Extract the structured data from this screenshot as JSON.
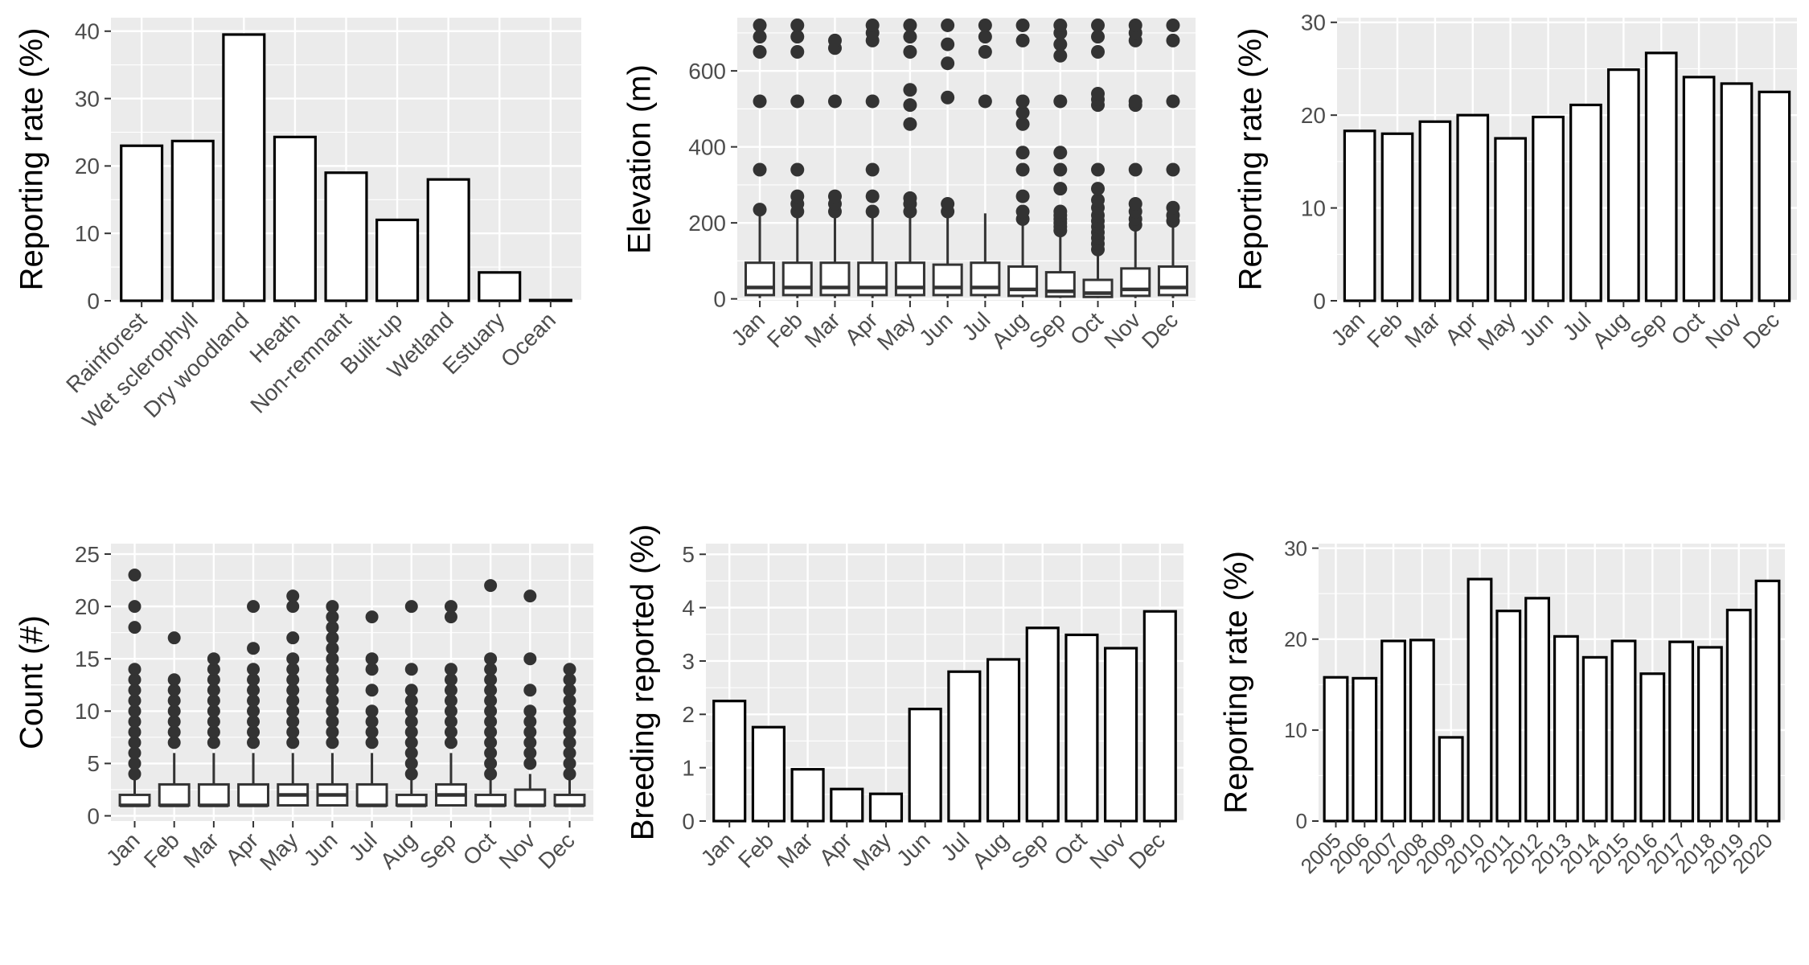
{
  "chart_data": [
    {
      "id": "habitat",
      "type": "bar",
      "ylabel": "Reporting rate (%)",
      "ylim": [
        0,
        42
      ],
      "yticks": [
        0,
        10,
        20,
        30,
        40
      ],
      "categories": [
        "Rainforest",
        "Wet sclerophyll",
        "Dry woodland",
        "Heath",
        "Non-remnant",
        "Built-up",
        "Wetland",
        "Estuary",
        "Ocean"
      ],
      "values": [
        23,
        23.7,
        39.5,
        24.3,
        19,
        12,
        18,
        4.2,
        0.1
      ],
      "grid": true,
      "xtick_rotation": 45
    },
    {
      "id": "elevation",
      "type": "box",
      "ylabel": "Elevation (m)",
      "ylim": [
        -5,
        740
      ],
      "yticks": [
        0,
        200,
        400,
        600
      ],
      "categories": [
        "Jan",
        "Feb",
        "Mar",
        "Apr",
        "May",
        "Jun",
        "Jul",
        "Aug",
        "Sep",
        "Oct",
        "Nov",
        "Dec"
      ],
      "boxes": [
        {
          "q1": 10,
          "median": 30,
          "q3": 95,
          "lo": 2,
          "hi": 225,
          "outliers": [
            235,
            340,
            520,
            650,
            690,
            720
          ]
        },
        {
          "q1": 10,
          "median": 30,
          "q3": 95,
          "lo": 2,
          "hi": 225,
          "outliers": [
            230,
            250,
            270,
            340,
            520,
            650,
            690,
            720
          ]
        },
        {
          "q1": 10,
          "median": 30,
          "q3": 95,
          "lo": 2,
          "hi": 220,
          "outliers": [
            230,
            250,
            270,
            520,
            660,
            680
          ]
        },
        {
          "q1": 10,
          "median": 30,
          "q3": 95,
          "lo": 2,
          "hi": 215,
          "outliers": [
            230,
            270,
            340,
            520,
            680,
            700,
            720
          ]
        },
        {
          "q1": 10,
          "median": 30,
          "q3": 95,
          "lo": 2,
          "hi": 220,
          "outliers": [
            230,
            250,
            265,
            460,
            510,
            550,
            650,
            690,
            720
          ]
        },
        {
          "q1": 10,
          "median": 30,
          "q3": 90,
          "lo": 2,
          "hi": 215,
          "outliers": [
            230,
            250,
            530,
            620,
            670,
            720
          ]
        },
        {
          "q1": 10,
          "median": 30,
          "q3": 95,
          "lo": 2,
          "hi": 225,
          "outliers": [
            520,
            650,
            690,
            720
          ]
        },
        {
          "q1": 8,
          "median": 25,
          "q3": 85,
          "lo": 2,
          "hi": 200,
          "outliers": [
            210,
            230,
            270,
            340,
            385,
            460,
            490,
            520,
            680,
            720
          ]
        },
        {
          "q1": 6,
          "median": 20,
          "q3": 70,
          "lo": 2,
          "hi": 170,
          "outliers": [
            180,
            190,
            200,
            210,
            220,
            230,
            290,
            340,
            385,
            520,
            640,
            670,
            700,
            720
          ]
        },
        {
          "q1": 5,
          "median": 15,
          "q3": 50,
          "lo": 2,
          "hi": 120,
          "outliers": [
            130,
            145,
            160,
            175,
            190,
            205,
            220,
            240,
            260,
            290,
            340,
            510,
            525,
            540,
            650,
            690,
            720
          ]
        },
        {
          "q1": 8,
          "median": 25,
          "q3": 80,
          "lo": 2,
          "hi": 180,
          "outliers": [
            195,
            210,
            230,
            250,
            340,
            510,
            520,
            680,
            700,
            720
          ]
        },
        {
          "q1": 10,
          "median": 30,
          "q3": 85,
          "lo": 2,
          "hi": 190,
          "outliers": [
            205,
            220,
            240,
            340,
            520,
            680,
            720
          ]
        }
      ]
    },
    {
      "id": "reporting-month",
      "type": "bar",
      "ylabel": "Reporting rate (%)",
      "ylim": [
        0,
        30.5
      ],
      "yticks": [
        0,
        10,
        20,
        30
      ],
      "categories": [
        "Jan",
        "Feb",
        "Mar",
        "Apr",
        "May",
        "Jun",
        "Jul",
        "Aug",
        "Sep",
        "Oct",
        "Nov",
        "Dec"
      ],
      "values": [
        18.3,
        18,
        19.3,
        20,
        17.5,
        19.8,
        21.1,
        24.9,
        26.7,
        24.1,
        23.4,
        22.5
      ],
      "grid": true
    },
    {
      "id": "count",
      "type": "box",
      "ylabel": "Count (#)",
      "ylim": [
        -0.5,
        26
      ],
      "yticks": [
        0,
        5,
        10,
        15,
        20,
        25
      ],
      "categories": [
        "Jan",
        "Feb",
        "Mar",
        "Apr",
        "May",
        "Jun",
        "Jul",
        "Aug",
        "Sep",
        "Oct",
        "Nov",
        "Dec"
      ],
      "boxes": [
        {
          "q1": 1,
          "median": 1,
          "q3": 2,
          "lo": 1,
          "hi": 3.5,
          "outliers": [
            4,
            5,
            6,
            7,
            8,
            9,
            10,
            11,
            12,
            13,
            14,
            18,
            20,
            23
          ]
        },
        {
          "q1": 1,
          "median": 1,
          "q3": 3,
          "lo": 1,
          "hi": 6,
          "outliers": [
            7,
            8,
            9,
            10,
            11,
            12,
            13,
            17
          ]
        },
        {
          "q1": 1,
          "median": 1,
          "q3": 3,
          "lo": 1,
          "hi": 6,
          "outliers": [
            7,
            8,
            9,
            10,
            11,
            12,
            13,
            14,
            15
          ]
        },
        {
          "q1": 1,
          "median": 1,
          "q3": 3,
          "lo": 1,
          "hi": 6,
          "outliers": [
            7,
            8,
            9,
            10,
            11,
            12,
            13,
            14,
            16,
            20
          ]
        },
        {
          "q1": 1,
          "median": 2,
          "q3": 3,
          "lo": 1,
          "hi": 6,
          "outliers": [
            7,
            8,
            9,
            10,
            11,
            12,
            13,
            14,
            15,
            17,
            20,
            21
          ]
        },
        {
          "q1": 1,
          "median": 2,
          "q3": 3,
          "lo": 1,
          "hi": 6,
          "outliers": [
            7,
            8,
            9,
            10,
            11,
            12,
            13,
            14,
            15,
            16,
            17,
            18,
            19,
            20
          ]
        },
        {
          "q1": 1,
          "median": 1,
          "q3": 3,
          "lo": 1,
          "hi": 6,
          "outliers": [
            7,
            8,
            9,
            10,
            12,
            14,
            15,
            19
          ]
        },
        {
          "q1": 1,
          "median": 1,
          "q3": 2,
          "lo": 1,
          "hi": 3.5,
          "outliers": [
            4,
            5,
            6,
            7,
            8,
            9,
            10,
            11,
            12,
            14,
            20
          ]
        },
        {
          "q1": 1,
          "median": 2,
          "q3": 3,
          "lo": 1,
          "hi": 6,
          "outliers": [
            7,
            8,
            9,
            10,
            11,
            12,
            13,
            14,
            19,
            20
          ]
        },
        {
          "q1": 1,
          "median": 1,
          "q3": 2,
          "lo": 1,
          "hi": 3.5,
          "outliers": [
            4,
            5,
            6,
            7,
            8,
            9,
            10,
            11,
            12,
            13,
            14,
            15,
            22
          ]
        },
        {
          "q1": 1,
          "median": 1,
          "q3": 2.5,
          "lo": 1,
          "hi": 4,
          "outliers": [
            5,
            6,
            7,
            8,
            9,
            10,
            12,
            15,
            21
          ]
        },
        {
          "q1": 1,
          "median": 1,
          "q3": 2,
          "lo": 1,
          "hi": 3.5,
          "outliers": [
            4,
            5,
            6,
            7,
            8,
            9,
            10,
            11,
            12,
            13,
            14
          ]
        }
      ]
    },
    {
      "id": "breeding",
      "type": "bar",
      "ylabel": "Breeding reported (%)",
      "ylim": [
        0,
        5.2
      ],
      "yticks": [
        0,
        1,
        2,
        3,
        4,
        5
      ],
      "categories": [
        "Jan",
        "Feb",
        "Mar",
        "Apr",
        "May",
        "Jun",
        "Jul",
        "Aug",
        "Sep",
        "Oct",
        "Nov",
        "Dec"
      ],
      "values": [
        2.25,
        1.76,
        0.97,
        0.6,
        0.51,
        2.1,
        2.8,
        3.03,
        3.62,
        3.49,
        3.24,
        3.93
      ],
      "grid": true
    },
    {
      "id": "reporting-year",
      "type": "bar",
      "ylabel": "Reporting rate (%)",
      "ylim": [
        0,
        30.5
      ],
      "yticks": [
        0,
        10,
        20,
        30
      ],
      "categories": [
        "2005",
        "2006",
        "2007",
        "2008",
        "2009",
        "2010",
        "2011",
        "2012",
        "2013",
        "2014",
        "2015",
        "2016",
        "2017",
        "2018",
        "2019",
        "2020"
      ],
      "values": [
        15.8,
        15.7,
        19.8,
        19.9,
        9.2,
        26.6,
        23.1,
        24.5,
        20.3,
        18,
        19.8,
        16.2,
        19.7,
        19.1,
        23.2,
        26.4
      ],
      "grid": true
    }
  ]
}
